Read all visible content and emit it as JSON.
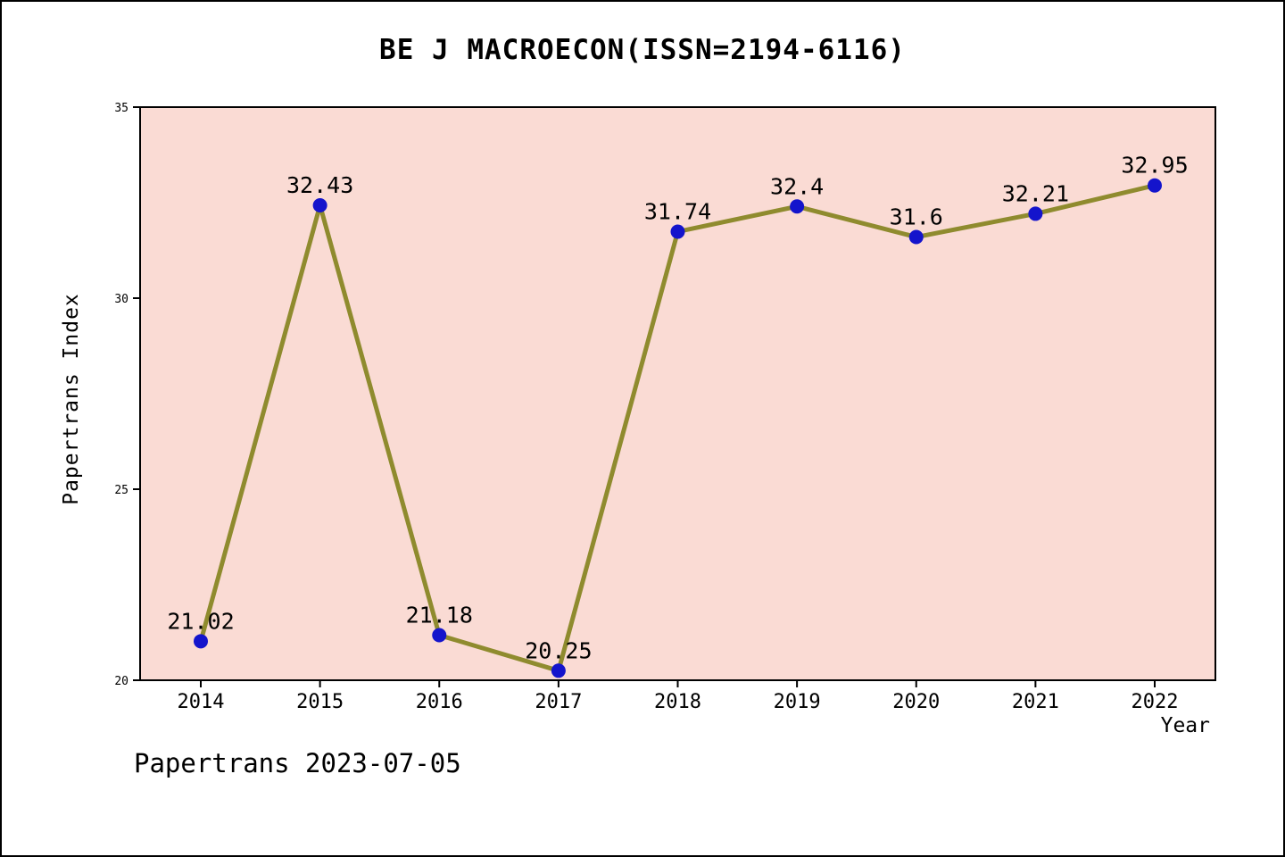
{
  "chart": {
    "title": "BE J MACROECON(ISSN=2194-6116)",
    "xlabel": "Year",
    "ylabel": "Papertrans Index",
    "footer": "Papertrans 2023-07-05"
  },
  "chart_data": {
    "type": "line",
    "title": "BE J MACROECON(ISSN=2194-6116)",
    "xlabel": "Year",
    "ylabel": "Papertrans Index",
    "x": [
      2014,
      2015,
      2016,
      2017,
      2018,
      2019,
      2020,
      2021,
      2022
    ],
    "values": [
      21.02,
      32.43,
      21.18,
      20.25,
      31.74,
      32.4,
      31.6,
      32.21,
      32.95
    ],
    "point_labels": [
      "21.02",
      "32.43",
      "21.18",
      "20.25",
      "31.74",
      "32.4",
      "31.6",
      "32.21",
      "32.95"
    ],
    "ylim": [
      20,
      35
    ],
    "yticks": [
      20,
      25,
      30,
      35
    ],
    "grid": false,
    "legend": null,
    "annotation": "Papertrans 2023-07-05",
    "colors": {
      "plot_bg": "#fadbd4",
      "line": "#8f8b2e",
      "marker": "#1414cc",
      "axis": "#000000",
      "text": "#000000"
    }
  }
}
